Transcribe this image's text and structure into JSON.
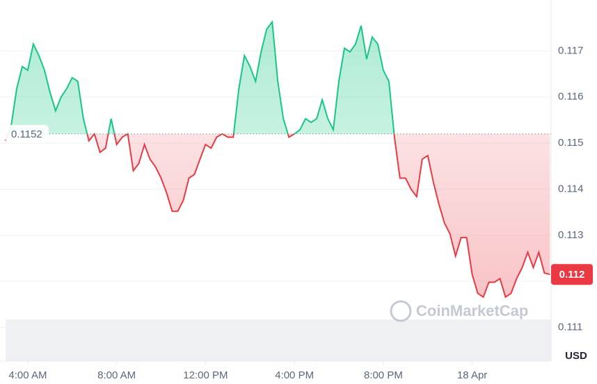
{
  "chart_data": {
    "type": "line",
    "x": [
      3,
      3.25,
      3.5,
      3.75,
      4,
      4.25,
      4.5,
      4.75,
      5,
      5.25,
      5.5,
      5.75,
      6,
      6.25,
      6.5,
      6.75,
      7,
      7.25,
      7.5,
      7.75,
      8,
      8.25,
      8.5,
      8.75,
      9,
      9.25,
      9.5,
      9.75,
      10,
      10.25,
      10.5,
      10.75,
      11,
      11.25,
      11.5,
      11.75,
      12,
      12.25,
      12.5,
      12.75,
      13,
      13.25,
      13.5,
      13.75,
      14,
      14.25,
      14.5,
      14.75,
      15,
      15.25,
      15.5,
      15.75,
      16,
      16.25,
      16.5,
      16.75,
      17,
      17.25,
      17.5,
      17.75,
      18,
      18.25,
      18.5,
      18.75,
      19,
      19.25,
      19.5,
      19.75,
      20,
      20.25,
      20.5,
      20.75,
      21,
      21.25,
      21.5,
      21.75,
      22,
      22.25,
      22.5,
      22.75,
      23,
      23.25,
      23.5,
      23.75,
      24,
      24.25,
      24.5,
      24.75,
      25,
      25.25,
      25.5,
      25.75,
      26,
      26.25,
      26.5,
      26.75,
      27,
      27.25,
      27.5
    ],
    "values": [
      0.11505,
      0.11537,
      0.11618,
      0.11666,
      0.11658,
      0.11715,
      0.1169,
      0.11658,
      0.1161,
      0.1157,
      0.116,
      0.11618,
      0.11642,
      0.11634,
      0.11553,
      0.11505,
      0.1152,
      0.1148,
      0.11489,
      0.11553,
      0.11497,
      0.11513,
      0.1152,
      0.1144,
      0.11456,
      0.11497,
      0.11465,
      0.11448,
      0.11424,
      0.11392,
      0.11352,
      0.11352,
      0.11376,
      0.11424,
      0.11432,
      0.11465,
      0.11497,
      0.11489,
      0.11513,
      0.1152,
      0.11513,
      0.11513,
      0.11618,
      0.1169,
      0.11666,
      0.11634,
      0.11698,
      0.11747,
      0.11763,
      0.11634,
      0.11553,
      0.11513,
      0.1152,
      0.11529,
      0.11553,
      0.11545,
      0.11553,
      0.11594,
      0.11553,
      0.11529,
      0.11634,
      0.11706,
      0.11698,
      0.11715,
      0.11755,
      0.11682,
      0.1173,
      0.11715,
      0.11658,
      0.11634,
      0.11513,
      0.11424,
      0.11424,
      0.114,
      0.11384,
      0.11465,
      0.11473,
      0.11416,
      0.11368,
      0.11327,
      0.11303,
      0.11255,
      0.11295,
      0.11295,
      0.11215,
      0.11174,
      0.11166,
      0.11198,
      0.11198,
      0.11206,
      0.11166,
      0.11174,
      0.11206,
      0.1123,
      0.11263,
      0.1123,
      0.11263,
      0.11218,
      0.11215
    ],
    "baseline": 0.1152,
    "last_value_label": "0.112",
    "up_color": "#16c784",
    "down_color": "#ea3943",
    "xlim": [
      3,
      27.55
    ],
    "xticks": [
      {
        "value": 4,
        "label": "4:00 AM"
      },
      {
        "value": 8,
        "label": "8:00 AM"
      },
      {
        "value": 12,
        "label": "12:00 PM"
      },
      {
        "value": 16,
        "label": "4:00 PM"
      },
      {
        "value": 20,
        "label": "8:00 PM"
      },
      {
        "value": 24,
        "label": "18 Apr"
      }
    ],
    "ylim": [
      0.11027,
      0.11803
    ],
    "yticks": [
      0.111,
      0.112,
      0.113,
      0.114,
      0.115,
      0.116,
      0.117
    ],
    "currency": "USD",
    "watermark": "CoinMarketCap",
    "grid": true
  }
}
